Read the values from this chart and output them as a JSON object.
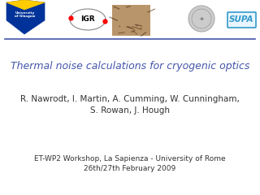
{
  "title": "Thermal noise calculations for cryogenic optics",
  "authors_line1": "R. Nawrodt, I. Martin, A. Cumming, W. Cunningham,",
  "authors_line2": "S. Rowan, J. Hough",
  "workshop_line1": "ET-WP2 Workshop, La Sapienza - University of Rome",
  "workshop_line2": "26th/27th February 2009",
  "title_color": "#4455aa",
  "authors_color": "#333333",
  "workshop_color": "#333333",
  "bg_color": "#ffffff",
  "separator_color": "#4455aa",
  "title_fontsize": 9.0,
  "authors_fontsize": 7.5,
  "workshop_fontsize": 6.5,
  "igr_color": "#888888",
  "supa_color": "#3399cc",
  "medal_color": "#c0c0c0"
}
